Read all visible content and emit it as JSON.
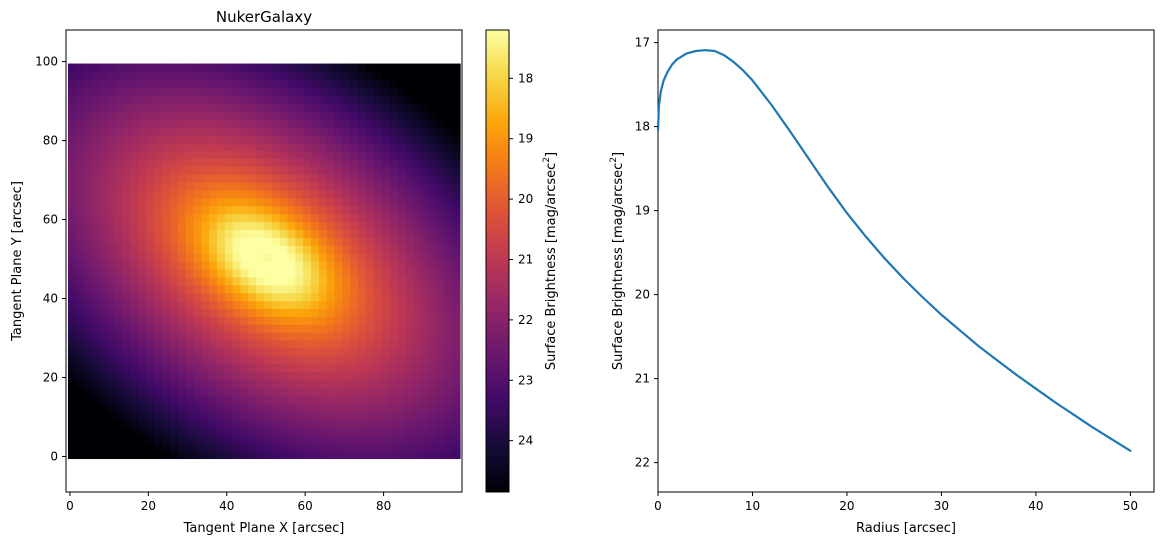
{
  "chart_data": [
    {
      "type": "heatmap",
      "title": "NukerGalaxy",
      "xlabel": "Tangent Plane X [arcsec]",
      "ylabel": "Tangent Plane Y [arcsec]",
      "xlim": [
        -1,
        100
      ],
      "ylim": [
        -9,
        108
      ],
      "x_ticks": [
        0,
        20,
        40,
        60,
        80
      ],
      "y_ticks": [
        0,
        20,
        40,
        60,
        80,
        100
      ],
      "image_extent": {
        "x": [
          -0.5,
          99.5
        ],
        "y": [
          -0.5,
          99.5
        ]
      },
      "grid_size": 100,
      "center": [
        50,
        50
      ],
      "ellipse": {
        "axis_ratio": 0.6,
        "position_angle_deg": -35
      },
      "colormap": "inferno",
      "colorbar": {
        "label": "Surface Brightness [mag/arcsec²]",
        "label_main": "Surface Brightness [mag/arcsec",
        "label_sup": "2",
        "label_end": "]",
        "range": [
          17.2,
          24.85
        ],
        "ticks": [
          18,
          19,
          20,
          21,
          22,
          23,
          24
        ],
        "inverted": true
      },
      "profile_source": "chart_data.1.series.0"
    },
    {
      "type": "line",
      "title": "",
      "xlabel": "Radius [arcsec]",
      "ylabel": "Surface Brightness [mag/arcsec²]",
      "ylabel_main": "Surface Brightness [mag/arcsec",
      "ylabel_sup": "2",
      "ylabel_end": "]",
      "xlim": [
        0,
        52.5
      ],
      "ylim": [
        22.35,
        16.85
      ],
      "y_inverted": true,
      "x_ticks": [
        0,
        10,
        20,
        30,
        40,
        50
      ],
      "y_ticks": [
        17,
        18,
        19,
        20,
        21,
        22
      ],
      "series": [
        {
          "color": "#1f77b4",
          "x": [
            0,
            0.1,
            0.3,
            0.6,
            1,
            1.5,
            2,
            3,
            4,
            5,
            6,
            7,
            8,
            9,
            10,
            12,
            14,
            16,
            18,
            20,
            22,
            24,
            26,
            28,
            30,
            32,
            34,
            36,
            38,
            40,
            42,
            44,
            46,
            48,
            50
          ],
          "y": [
            18.05,
            17.75,
            17.58,
            17.45,
            17.35,
            17.26,
            17.2,
            17.13,
            17.1,
            17.09,
            17.1,
            17.15,
            17.23,
            17.33,
            17.45,
            17.74,
            18.06,
            18.39,
            18.72,
            19.03,
            19.31,
            19.57,
            19.81,
            20.03,
            20.24,
            20.43,
            20.62,
            20.79,
            20.96,
            21.12,
            21.28,
            21.43,
            21.58,
            21.72,
            21.86
          ]
        }
      ]
    }
  ]
}
